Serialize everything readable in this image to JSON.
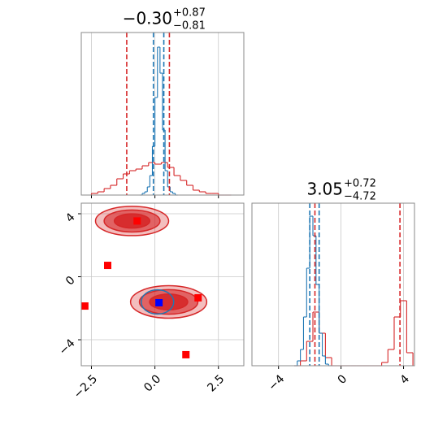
{
  "chart_data": [
    {
      "type": "histogram",
      "title": {
        "main": "−0.30",
        "sup": "+0.87",
        "sub": "−0.81"
      },
      "xlim": [
        -2.9,
        3.5
      ],
      "ylim": [
        0,
        1
      ],
      "xticks": [
        -2.5,
        0,
        2.5
      ],
      "show_xtick_labels": false,
      "grid": true,
      "series": [
        {
          "color": "#d62728",
          "bins": [
            -2.5,
            -2.25,
            -2,
            -1.75,
            -1.5,
            -1.25,
            -1,
            -0.75,
            -0.5,
            -0.25,
            0,
            0.25,
            0.5,
            0.75,
            1,
            1.25,
            1.5,
            1.75,
            2,
            2.25,
            2.5,
            2.75,
            3
          ],
          "values": [
            0.01,
            0.02,
            0.04,
            0.06,
            0.1,
            0.13,
            0.15,
            0.16,
            0.18,
            0.2,
            0.19,
            0.2,
            0.17,
            0.12,
            0.09,
            0.06,
            0.03,
            0.02,
            0.01,
            0.01,
            0,
            0
          ]
        },
        {
          "color": "#1f77b4",
          "bins": [
            -0.6,
            -0.5,
            -0.4,
            -0.3,
            -0.2,
            -0.1,
            0,
            0.1,
            0.2,
            0.3,
            0.4,
            0.5,
            0.6,
            0.7,
            0.8,
            0.9
          ],
          "values": [
            0,
            0.01,
            0.02,
            0.05,
            0.12,
            0.3,
            0.6,
            0.91,
            0.75,
            0.4,
            0.15,
            0.05,
            0.02,
            0.01,
            0
          ]
        }
      ],
      "vlines": [
        {
          "color": "#d62728",
          "x": [
            -1.11,
            0.57
          ]
        },
        {
          "color": "#1f77b4",
          "x": [
            -0.06,
            0.35
          ]
        }
      ]
    },
    {
      "type": "scatter",
      "xlim": [
        -2.9,
        3.5
      ],
      "ylim": [
        -5.65,
        4.67
      ],
      "xticks": [
        {
          "value": -2.5,
          "label": "−2.5"
        },
        {
          "value": 0,
          "label": "0.0"
        },
        {
          "value": 2.5,
          "label": "2.5"
        }
      ],
      "yticks": [
        {
          "value": -4,
          "label": "−4"
        },
        0,
        4
      ],
      "grid": true,
      "contours": [
        {
          "color": "#d62728",
          "cx": -0.9,
          "cy": 3.54,
          "rx": [
            1.44,
            1.1,
            0.7
          ],
          "ry": [
            0.93,
            0.7,
            0.45
          ]
        },
        {
          "color": "#d62728",
          "cx": 0.54,
          "cy": -1.6,
          "rx": [
            1.5,
            1.15,
            0.75
          ],
          "ry": [
            1.03,
            0.78,
            0.5
          ]
        },
        {
          "color": "#1f77b4",
          "cx": 0.1,
          "cy": -1.6,
          "rx": [
            0.64
          ],
          "ry": [
            0.77
          ]
        }
      ],
      "series": [
        {
          "color": "#ff0000",
          "x": [
            -0.7,
            -1.86,
            -2.76,
            1.7,
            1.22
          ],
          "y": [
            3.54,
            0.72,
            -1.86,
            -1.34,
            -4.95
          ]
        },
        {
          "color": "#0000ff",
          "x": [
            0.16
          ],
          "y": [
            -1.65
          ]
        }
      ]
    },
    {
      "type": "histogram",
      "title": {
        "main": "3.05",
        "sup": "+0.72",
        "sub": "−4.72"
      },
      "xlim": [
        -5.7,
        4.7
      ],
      "ylim": [
        0,
        1
      ],
      "xticks": [
        {
          "value": -4,
          "label": "−4"
        },
        0,
        4
      ],
      "show_xtick_labels": true,
      "grid": true,
      "series": [
        {
          "color": "#d62728",
          "bins": [
            -3,
            -2.6,
            -2.2,
            -1.8,
            -1.4,
            -1,
            -0.6,
            -0.2,
            0.2,
            0.6,
            1,
            1.4,
            1.8,
            2.2,
            2.6,
            3,
            3.4,
            3.8,
            4.2,
            4.6
          ],
          "values": [
            0,
            0.03,
            0.15,
            0.33,
            0.2,
            0.05,
            0,
            0,
            0,
            0,
            0,
            0,
            0,
            0,
            0.02,
            0.1,
            0.3,
            0.4,
            0.08
          ]
        },
        {
          "color": "#1f77b4",
          "bins": [
            -3,
            -2.8,
            -2.6,
            -2.4,
            -2.2,
            -2,
            -1.8,
            -1.6,
            -1.4,
            -1.2,
            -1,
            -0.8,
            -0.6
          ],
          "values": [
            0,
            0.03,
            0.1,
            0.3,
            0.6,
            0.92,
            0.8,
            0.5,
            0.2,
            0.06,
            0.01,
            0
          ]
        }
      ],
      "vlines": [
        {
          "color": "#d62728",
          "x": [
            -1.67,
            3.77
          ]
        },
        {
          "color": "#1f77b4",
          "x": [
            -2.0,
            -1.4
          ]
        }
      ]
    }
  ]
}
